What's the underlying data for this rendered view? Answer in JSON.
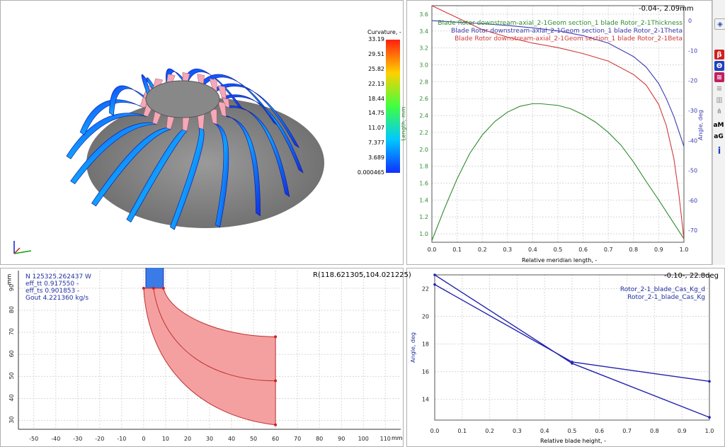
{
  "viewer3d": {
    "colorbar_title": "Curvature, -",
    "colorbar_ticks": [
      "33.19",
      "29.51",
      "25.82",
      "22.13",
      "18.44",
      "14.75",
      "11.07",
      "7.377",
      "3.689",
      "0.000465"
    ]
  },
  "chart_top": {
    "readout": "-0.04-, 2.09mm",
    "legend": [
      "Blade Rotor downstream-axial_2-1Geom section_1 blade Rotor_2-1Thickness",
      "Blade Rotor downstream-axial_2-1Geom section_1 blade Rotor_2-1Theta",
      "Blade Rotor downstream-axial_2-1Geom section_1 blade Rotor_2-1Beta"
    ],
    "colors": [
      "#2e8b2e",
      "#3b3bb0",
      "#d03a3a"
    ],
    "xlabel": "Relative meridian length, -",
    "ylabel_left": "Length, mm",
    "ylabel_right": "Angle, deg",
    "x_ticks": [
      "0.0",
      "0.1",
      "0.2",
      "0.3",
      "0.4",
      "0.5",
      "0.6",
      "0.7",
      "0.8",
      "0.9",
      "1.0"
    ],
    "y_left_ticks": [
      "3.6",
      "3.4",
      "3.2",
      "3.0",
      "2.8",
      "2.6",
      "2.4",
      "2.2",
      "2.0",
      "1.8",
      "1.6",
      "1.4",
      "1.2",
      "1.0"
    ],
    "y_right_ticks": [
      "0",
      "-10",
      "-20",
      "-30",
      "-40",
      "-50",
      "-60",
      "-70"
    ]
  },
  "chart_meridional": {
    "info_lines": [
      "N 125325.262437 W",
      "eff_tt 0.917550 -",
      "eff_ts 0.901853 -",
      "Gout 4.221360 kg/s"
    ],
    "readout": "R(118.621305,104.021225)",
    "axis_unit": "mm",
    "x_ticks": [
      "-50",
      "-40",
      "-30",
      "-20",
      "-10",
      "0",
      "10",
      "20",
      "30",
      "40",
      "50",
      "60",
      "70",
      "80",
      "90",
      "100",
      "110"
    ],
    "y_ticks": [
      "90",
      "80",
      "70",
      "60",
      "50",
      "40",
      "30"
    ]
  },
  "chart_bottom": {
    "readout": "-0.10-, 22.8deg",
    "legend": [
      "Rotor_2-1_blade_Cas_Kg_d",
      "Rotor_2-1_blade_Cas_Kg"
    ],
    "xlabel": "Relative blade height, -",
    "ylabel": "Angle, deg",
    "x_ticks": [
      "0.0",
      "0.1",
      "0.2",
      "0.3",
      "0.4",
      "0.5",
      "0.6",
      "0.7",
      "0.8",
      "0.9",
      "1.0"
    ],
    "y_ticks": [
      "22",
      "20",
      "18",
      "16",
      "14"
    ]
  },
  "chart_data": [
    {
      "type": "line",
      "title": "",
      "xlabel": "Relative meridian length, -",
      "ylabel": "Length, mm",
      "xlim": [
        0,
        1
      ],
      "ylim": [
        0.9,
        3.7
      ],
      "y2lim": [
        -74,
        5
      ],
      "series": [
        {
          "name": "Blade Rotor downstream-axial_2-1Geom section_1 blade Rotor_2-1Thickness",
          "axis": "left",
          "x": [
            0,
            0.05,
            0.1,
            0.15,
            0.2,
            0.25,
            0.3,
            0.35,
            0.4,
            0.43,
            0.5,
            0.55,
            0.6,
            0.65,
            0.7,
            0.75,
            0.8,
            0.85,
            0.9,
            0.95,
            1.0
          ],
          "y": [
            0.92,
            1.3,
            1.65,
            1.95,
            2.17,
            2.33,
            2.44,
            2.51,
            2.54,
            2.54,
            2.52,
            2.48,
            2.41,
            2.32,
            2.2,
            2.05,
            1.85,
            1.62,
            1.4,
            1.17,
            0.94
          ]
        },
        {
          "name": "Blade Rotor downstream-axial_2-1Geom section_1 blade Rotor_2-1Theta",
          "axis": "right",
          "x": [
            0,
            0.1,
            0.2,
            0.3,
            0.4,
            0.5,
            0.6,
            0.7,
            0.8,
            0.85,
            0.9,
            0.93,
            0.96,
            0.98,
            1.0
          ],
          "y": [
            0,
            -0.5,
            -1,
            -1.6,
            -2.4,
            -3.4,
            -5,
            -7.5,
            -12,
            -15.5,
            -21,
            -26,
            -32,
            -37,
            -42
          ]
        },
        {
          "name": "Blade Rotor downstream-axial_2-1Geom section_1 blade Rotor_2-1Beta",
          "axis": "right",
          "x": [
            0,
            0.1,
            0.2,
            0.3,
            0.4,
            0.5,
            0.6,
            0.7,
            0.8,
            0.85,
            0.9,
            0.93,
            0.96,
            0.98,
            1.0
          ],
          "y": [
            5,
            1,
            -3,
            -5.5,
            -7.5,
            -9,
            -11,
            -13.5,
            -18,
            -21.5,
            -28,
            -35,
            -46,
            -58,
            -73
          ]
        }
      ]
    },
    {
      "type": "line",
      "title": "",
      "xlabel": "Relative blade height, -",
      "ylabel": "Angle, deg",
      "xlim": [
        0,
        1
      ],
      "ylim": [
        12.5,
        23
      ],
      "series": [
        {
          "name": "Rotor_2-1_blade_Cas_Kg_d",
          "x": [
            0,
            0.5,
            1.0
          ],
          "y": [
            23.0,
            16.6,
            12.7
          ]
        },
        {
          "name": "Rotor_2-1_blade_Cas_Kg",
          "x": [
            0,
            0.5,
            1.0
          ],
          "y": [
            22.3,
            16.7,
            15.3
          ]
        }
      ]
    }
  ],
  "toolbar": {
    "icons": [
      "view-icon",
      "beta-icon",
      "theta-icon",
      "blade-icon",
      "lines-icon",
      "bars-icon",
      "split-icon",
      "am-icon",
      "ag-icon",
      "info-icon"
    ],
    "am_label": "aM",
    "ag_label": "aG",
    "beta_label": "β",
    "theta_label": "Θ",
    "info_label": "i"
  }
}
